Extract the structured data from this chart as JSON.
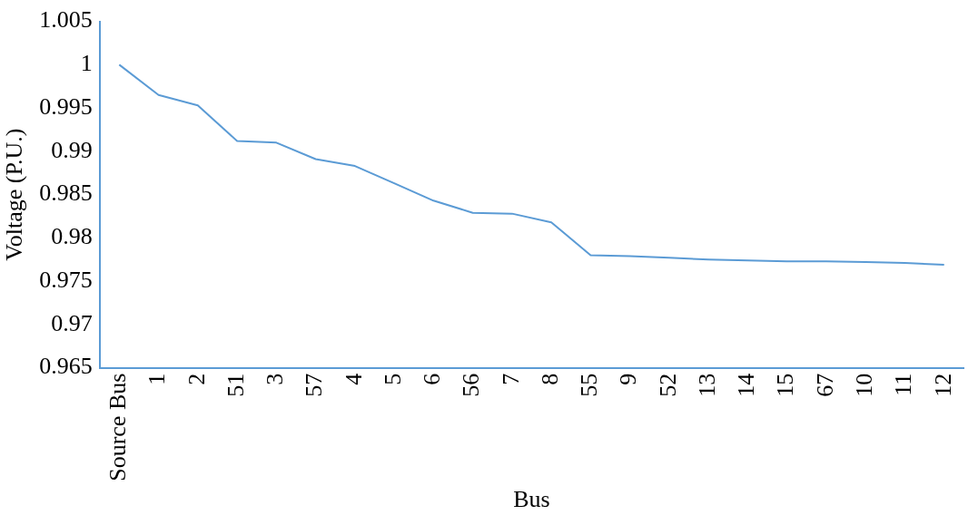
{
  "chart_data": {
    "type": "line",
    "xlabel": "Bus",
    "ylabel": "Voltage (P.U.)",
    "categories": [
      "Source Bus",
      "1",
      "2",
      "51",
      "3",
      "57",
      "4",
      "5",
      "6",
      "56",
      "7",
      "8",
      "55",
      "9",
      "52",
      "13",
      "14",
      "15",
      "67",
      "10",
      "11",
      "12"
    ],
    "series": [
      {
        "color": "#5b9bd5",
        "values": [
          1.0,
          0.9965,
          0.9953,
          0.9912,
          0.991,
          0.9891,
          0.9883,
          0.9863,
          0.9843,
          0.9829,
          0.9828,
          0.9818,
          0.978,
          0.9779,
          0.9777,
          0.9775,
          0.9774,
          0.9773,
          0.9773,
          0.9772,
          0.9771,
          0.9769
        ]
      }
    ],
    "ylim": [
      0.965,
      1.005
    ],
    "yticks": [
      0.965,
      0.97,
      0.975,
      0.98,
      0.985,
      0.99,
      0.995,
      1,
      1.005
    ],
    "grid": false,
    "legend": false,
    "marker": "none",
    "line_style": "solid"
  }
}
